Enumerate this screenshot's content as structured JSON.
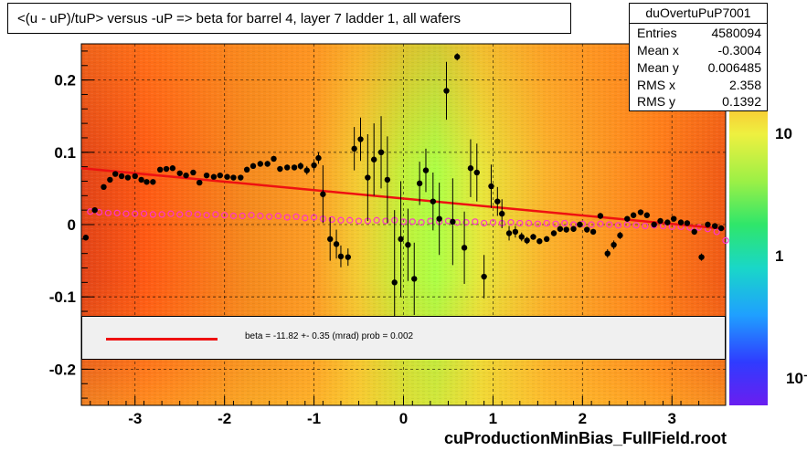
{
  "title": "<(u - uP)/tuP> versus  -uP => beta for barrel 4, layer 7 ladder 1, all wafers",
  "stats": {
    "name": "duOvertuPuP7001",
    "rows": [
      {
        "key": "Entries",
        "value": "4580094"
      },
      {
        "key": "Mean x",
        "value": "-0.3004"
      },
      {
        "key": "Mean y",
        "value": "0.006485"
      },
      {
        "key": "RMS x",
        "value": "2.358"
      },
      {
        "key": "RMS y",
        "value": "0.1392"
      }
    ]
  },
  "fit_legend": "beta =  -11.82 +-  0.35 (mrad) prob = 0.002",
  "footer": "cuProductionMinBias_FullField.root",
  "palette_labels": [
    "10",
    "1",
    "10⁻"
  ],
  "colors": {
    "fit_line": "#ee1111",
    "profile_open": "#ff33cc",
    "points": "#000000"
  },
  "chart_data": {
    "type": "scatter",
    "xlim": [
      -3.6,
      3.6
    ],
    "ylim": [
      -0.25,
      0.25
    ],
    "x_ticks": [
      "-3",
      "-2",
      "-1",
      "0",
      "1",
      "2",
      "3"
    ],
    "y_ticks": [
      "0.2",
      "0.1",
      "0",
      "-0.1",
      "-0.2"
    ],
    "grid": true,
    "background": "2D density histogram (log color scale)",
    "fit_line": {
      "x": [
        -3.6,
        3.6
      ],
      "y": [
        0.078,
        -0.006
      ]
    },
    "series": [
      {
        "marker": "filled",
        "x": [
          -3.55,
          -3.45,
          -3.35,
          -3.28,
          -3.22,
          -3.15,
          -3.08,
          -3.0,
          -2.93,
          -2.87,
          -2.8,
          -2.72,
          -2.65,
          -2.58,
          -2.5,
          -2.43,
          -2.35,
          -2.28,
          -2.2,
          -2.12,
          -2.05,
          -1.97,
          -1.9,
          -1.82,
          -1.75,
          -1.68,
          -1.6,
          -1.52,
          -1.45,
          -1.38,
          -1.3,
          -1.22,
          -1.15,
          -1.08,
          -1.0,
          -0.95,
          -0.9,
          -0.82,
          -0.75,
          -0.7,
          -0.62,
          -0.55,
          -0.48,
          -0.4,
          -0.33,
          -0.25,
          -0.18,
          -0.1,
          -0.03,
          0.05,
          0.12,
          0.18,
          0.25,
          0.33,
          0.4,
          0.48,
          0.55,
          0.6,
          0.68,
          0.75,
          0.82,
          0.9,
          0.98,
          1.05,
          1.1,
          1.18,
          1.25,
          1.32,
          1.38,
          1.45,
          1.52,
          1.6,
          1.68,
          1.75,
          1.82,
          1.9,
          1.97,
          2.05,
          2.12,
          2.2,
          2.28,
          2.35,
          2.42,
          2.5,
          2.57,
          2.65,
          2.72,
          2.8,
          2.87,
          2.95,
          3.02,
          3.1,
          3.17,
          3.25,
          3.33,
          3.4,
          3.48,
          3.55
        ],
        "y": [
          -0.018,
          0.02,
          0.052,
          0.062,
          0.07,
          0.067,
          0.065,
          0.067,
          0.062,
          0.059,
          0.059,
          0.076,
          0.077,
          0.078,
          0.071,
          0.068,
          0.072,
          0.058,
          0.068,
          0.066,
          0.068,
          0.066,
          0.065,
          0.065,
          0.076,
          0.081,
          0.084,
          0.084,
          0.091,
          0.077,
          0.079,
          0.079,
          0.081,
          0.075,
          0.082,
          0.092,
          0.042,
          -0.02,
          -0.027,
          -0.044,
          -0.045,
          0.105,
          0.118,
          0.065,
          0.09,
          0.1,
          0.062,
          -0.08,
          -0.02,
          -0.028,
          -0.075,
          0.057,
          0.075,
          0.032,
          0.008,
          0.185,
          0.004,
          0.232,
          -0.032,
          0.078,
          0.072,
          -0.072,
          0.053,
          0.032,
          0.015,
          -0.012,
          -0.01,
          -0.017,
          -0.022,
          -0.017,
          -0.023,
          -0.02,
          -0.012,
          -0.006,
          -0.007,
          -0.006,
          0.0,
          -0.007,
          -0.01,
          0.012,
          -0.04,
          -0.028,
          -0.015,
          0.008,
          0.013,
          0.017,
          0.013,
          0.0,
          0.005,
          0.003,
          0.008,
          0.003,
          0.002,
          -0.01,
          -0.045,
          0.0,
          -0.002,
          -0.005
        ],
        "yerr": [
          0.003,
          0.003,
          0.003,
          0.003,
          0.003,
          0.003,
          0.003,
          0.003,
          0.003,
          0.003,
          0.003,
          0.003,
          0.003,
          0.003,
          0.003,
          0.003,
          0.003,
          0.003,
          0.003,
          0.003,
          0.003,
          0.003,
          0.003,
          0.003,
          0.004,
          0.004,
          0.004,
          0.004,
          0.004,
          0.004,
          0.004,
          0.004,
          0.005,
          0.006,
          0.007,
          0.008,
          0.04,
          0.03,
          0.02,
          0.015,
          0.012,
          0.03,
          0.03,
          0.06,
          0.05,
          0.05,
          0.06,
          0.1,
          0.08,
          0.05,
          0.05,
          0.03,
          0.03,
          0.04,
          0.05,
          0.04,
          0.06,
          0.005,
          0.05,
          0.04,
          0.04,
          0.03,
          0.03,
          0.02,
          0.02,
          0.01,
          0.008,
          0.006,
          0.005,
          0.004,
          0.004,
          0.004,
          0.004,
          0.004,
          0.004,
          0.004,
          0.004,
          0.004,
          0.004,
          0.004,
          0.006,
          0.006,
          0.005,
          0.004,
          0.004,
          0.004,
          0.004,
          0.004,
          0.004,
          0.004,
          0.004,
          0.004,
          0.004,
          0.004,
          0.005,
          0.004,
          0.004,
          0.004
        ]
      },
      {
        "marker": "open",
        "x": [
          -3.5,
          -3.4,
          -3.3,
          -3.2,
          -3.1,
          -3.0,
          -2.9,
          -2.8,
          -2.7,
          -2.6,
          -2.5,
          -2.4,
          -2.3,
          -2.2,
          -2.1,
          -2.0,
          -1.9,
          -1.8,
          -1.7,
          -1.6,
          -1.5,
          -1.4,
          -1.3,
          -1.2,
          -1.1,
          -1.0,
          -0.9,
          -0.8,
          -0.7,
          -0.6,
          -0.5,
          -0.4,
          -0.3,
          -0.2,
          -0.1,
          0.0,
          0.1,
          0.2,
          0.3,
          0.4,
          0.5,
          0.6,
          0.7,
          0.8,
          0.9,
          1.0,
          1.1,
          1.2,
          1.3,
          1.4,
          1.5,
          1.6,
          1.7,
          1.8,
          1.9,
          2.0,
          2.1,
          2.2,
          2.3,
          2.4,
          2.5,
          2.6,
          2.7,
          2.8,
          2.9,
          3.0,
          3.1,
          3.2,
          3.3,
          3.4,
          3.5,
          3.6
        ],
        "y": [
          0.018,
          0.017,
          0.016,
          0.016,
          0.015,
          0.015,
          0.015,
          0.014,
          0.014,
          0.015,
          0.014,
          0.015,
          0.014,
          0.013,
          0.014,
          0.013,
          0.012,
          0.012,
          0.013,
          0.012,
          0.011,
          0.012,
          0.01,
          0.011,
          0.009,
          0.01,
          0.008,
          0.007,
          0.006,
          0.006,
          0.005,
          0.005,
          0.006,
          0.005,
          0.006,
          0.004,
          0.004,
          0.003,
          0.005,
          0.004,
          0.005,
          0.003,
          0.003,
          0.004,
          0.002,
          0.003,
          0.002,
          0.003,
          0.002,
          0.002,
          0.001,
          0.002,
          0.001,
          0.002,
          0.0,
          0.001,
          0.0,
          0.001,
          0.0,
          -0.001,
          0.0,
          -0.001,
          -0.002,
          -0.001,
          -0.002,
          -0.003,
          -0.003,
          -0.004,
          -0.004,
          -0.006,
          -0.01,
          -0.022
        ]
      }
    ]
  }
}
